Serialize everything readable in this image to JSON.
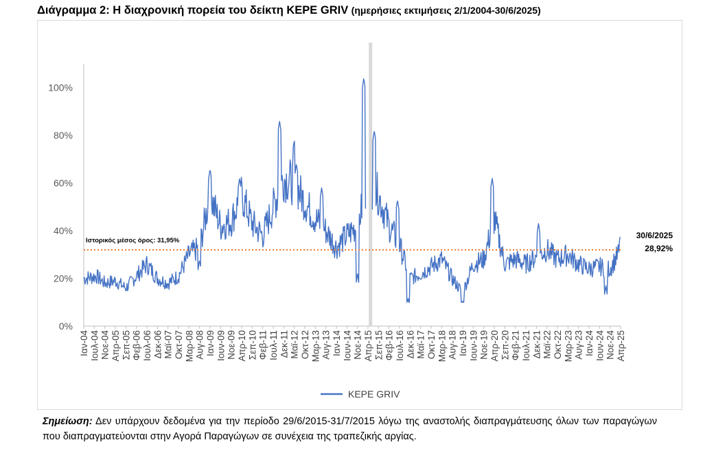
{
  "title": {
    "main": "Διάγραμμα 2: Η διαχρονική πορεία του δείκτη KEPE GRIV",
    "sub": "(ημερήσιες εκτιμήσεις 2/1/2004-30/6/2025)"
  },
  "note": {
    "label": "Σημείωση:",
    "text": "Δεν υπάρχουν δεδομένα για την περίοδο 29/6/2015-31/7/2015 λόγω της αναστολής διαπραγμάτευσης όλων των παραγώγων που διαπραγματεύονται στην Αγορά Παραγώγων σε συνέχεια της τραπεζικής αργίας."
  },
  "chart_data": {
    "type": "line",
    "title": "",
    "xlabel": "",
    "ylabel": "",
    "ylim": [
      0,
      1.1
    ],
    "y_ticks": [
      0,
      0.2,
      0.4,
      0.6,
      0.8,
      1.0
    ],
    "y_tick_labels": [
      "0%",
      "20%",
      "40%",
      "60%",
      "80%",
      "100%"
    ],
    "x_tick_labels": [
      "Ιαν-04",
      "Ιουλ-04",
      "Νοε-04",
      "Απρ-05",
      "Σεπ-05",
      "Φεβ-06",
      "Ιουλ-06",
      "Δεκ-06",
      "Μαϊ-07",
      "Οκτ-07",
      "Μαρ-08",
      "Αυγ-08",
      "Ιαν-09",
      "Ιουν-09",
      "Νοε-09",
      "Απρ-10",
      "Σεπ-10",
      "Φεβ-11",
      "Ιουλ-11",
      "Δεκ-11",
      "Μαϊ-12",
      "Οκτ-12",
      "Μαρ-13",
      "Αυγ-13",
      "Ιαν-14",
      "Ιουν-14",
      "Νοε-14",
      "Απρ-15",
      "Σεπ-15",
      "Φεβ-16",
      "Ιουλ-16",
      "Δεκ-16",
      "Μαϊ-17",
      "Οκτ-17",
      "Μαρ-18",
      "Αυγ-18",
      "Ιαν-19",
      "Ιουν-19",
      "Νοε-19",
      "Απρ-20",
      "Σεπ-20",
      "Φεβ-21",
      "Ιουλ-21",
      "Δεκ-21",
      "Μαϊ-22",
      "Οκτ-22",
      "Μαρ-23",
      "Αυγ-23",
      "Ιαν-24",
      "Ιουν-24",
      "Νοε-24",
      "Απρ-25"
    ],
    "grid": false,
    "legend_position": "bottom",
    "colors": {
      "series": "#4472c4",
      "mean": "#ed7d31",
      "gap": "#d9d9d9"
    },
    "series": [
      {
        "name": "KEPE GRIV",
        "points": [
          [
            "Ιαν-04",
            0.2
          ],
          [
            "Ιουλ-04",
            0.21
          ],
          [
            "Νοε-04",
            0.18
          ],
          [
            "Απρ-05",
            0.19
          ],
          [
            "Σεπ-05",
            0.16
          ],
          [
            "Φεβ-06",
            0.21
          ],
          [
            "Ιουλ-06",
            0.26
          ],
          [
            "Δεκ-06",
            0.2
          ],
          [
            "Μαϊ-07",
            0.18
          ],
          [
            "Οκτ-07",
            0.21
          ],
          [
            "Μαρ-08",
            0.3
          ],
          [
            "Αυγ-08",
            0.33
          ],
          [
            "Ιαν-09",
            0.55
          ],
          [
            "Ιουν-09",
            0.42
          ],
          [
            "Νοε-09",
            0.44
          ],
          [
            "Απρ-10",
            0.55
          ],
          [
            "Σεπ-10",
            0.43
          ],
          [
            "Φεβ-11",
            0.38
          ],
          [
            "Ιουλ-11",
            0.5
          ],
          [
            "Δεκ-11",
            0.62
          ],
          [
            "Μαϊ-12",
            0.6
          ],
          [
            "Οκτ-12",
            0.52
          ],
          [
            "Μαρ-13",
            0.45
          ],
          [
            "Αυγ-13",
            0.4
          ],
          [
            "Ιαν-14",
            0.33
          ],
          [
            "Ιουν-14",
            0.38
          ],
          [
            "Νοε-14",
            0.42
          ],
          [
            "Απρ-15",
            0.6
          ],
          [
            "Σεπ-15",
            0.55
          ],
          [
            "Φεβ-16",
            0.42
          ],
          [
            "Ιουλ-16",
            0.34
          ],
          [
            "Δεκ-16",
            0.2
          ],
          [
            "Μαϊ-17",
            0.22
          ],
          [
            "Οκτ-17",
            0.25
          ],
          [
            "Μαρ-18",
            0.28
          ],
          [
            "Αυγ-18",
            0.2
          ],
          [
            "Ιαν-19",
            0.14
          ],
          [
            "Ιουν-19",
            0.26
          ],
          [
            "Νοε-19",
            0.28
          ],
          [
            "Απρ-20",
            0.45
          ],
          [
            "Σεπ-20",
            0.26
          ],
          [
            "Φεβ-21",
            0.28
          ],
          [
            "Ιουλ-21",
            0.26
          ],
          [
            "Δεκ-21",
            0.29
          ],
          [
            "Μαϊ-22",
            0.32
          ],
          [
            "Οκτ-22",
            0.28
          ],
          [
            "Μαρ-23",
            0.3
          ],
          [
            "Αυγ-23",
            0.26
          ],
          [
            "Ιαν-24",
            0.24
          ],
          [
            "Ιουν-24",
            0.25
          ],
          [
            "Νοε-24",
            0.24
          ],
          [
            "Απρ-25",
            0.32
          ]
        ],
        "spikes": [
          [
            "Αυγ-08",
            0.28
          ],
          [
            "Ιαν-09",
            0.66
          ],
          [
            "Μαρ-10",
            0.62
          ],
          [
            "Οκτ-11",
            0.86
          ],
          [
            "Μαϊ-12",
            0.78
          ],
          [
            "Ιουν-12",
            0.68
          ],
          [
            "Ιουν-13",
            0.58
          ],
          [
            "Νοε-14",
            0.22
          ],
          [
            "Φεβ-15",
            1.04
          ],
          [
            "Ιουλ-15",
            0.82
          ],
          [
            "Ιουν-16",
            0.53
          ],
          [
            "Νοε-16",
            0.12
          ],
          [
            "Ιαν-19",
            0.11
          ],
          [
            "Μαρ-20",
            0.62
          ],
          [
            "Ιαν-22",
            0.43
          ],
          [
            "Σεπ-24",
            0.17
          ],
          [
            "Απρ-25",
            0.39
          ]
        ]
      }
    ],
    "mean_line": {
      "value": 0.3195,
      "label": "Ιστορικός μέσος όρος: 31,95%"
    },
    "gap_marker": {
      "x": "Ιουλ-15"
    },
    "last_value": {
      "date": "30/6/2025",
      "value": "28,92%",
      "y": 0.2892
    }
  }
}
